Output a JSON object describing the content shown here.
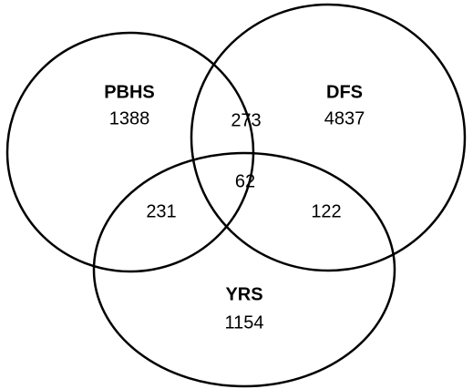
{
  "sets": [
    {
      "label": "PBHS",
      "count": 1388
    },
    {
      "label": "DFS",
      "count": 4837
    },
    {
      "label": "YRS",
      "count": 1154
    }
  ],
  "intersections": [
    {
      "count": 273
    },
    {
      "count": 231
    },
    {
      "count": 122
    },
    {
      "count": 62
    }
  ]
}
